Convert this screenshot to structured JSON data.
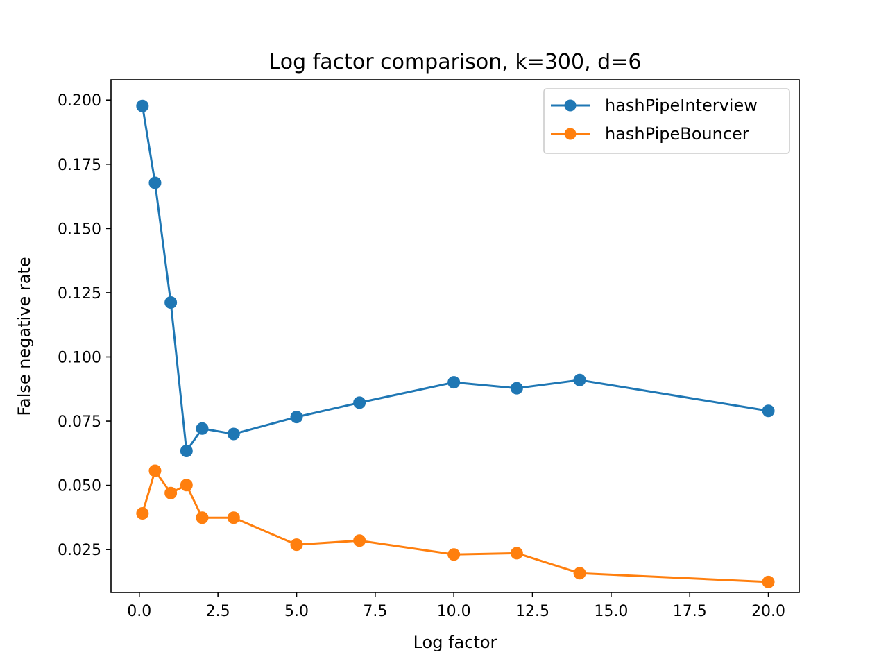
{
  "chart_data": {
    "type": "line",
    "title": "Log factor comparison, k=300, d=6",
    "xlabel": "Log factor",
    "ylabel": "False negative rate",
    "xlim": [
      -0.9,
      20.98
    ],
    "ylim": [
      0.0083,
      0.2079
    ],
    "x_ticks": [
      0.0,
      2.5,
      5.0,
      7.5,
      10.0,
      12.5,
      15.0,
      17.5,
      20.0
    ],
    "x_tick_labels": [
      "0.0",
      "2.5",
      "5.0",
      "7.5",
      "10.0",
      "12.5",
      "15.0",
      "17.5",
      "20.0"
    ],
    "y_ticks": [
      0.025,
      0.05,
      0.075,
      0.1,
      0.125,
      0.15,
      0.175,
      0.2
    ],
    "y_tick_labels": [
      "0.025",
      "0.050",
      "0.075",
      "0.100",
      "0.125",
      "0.150",
      "0.175",
      "0.200"
    ],
    "grid": false,
    "legend_position": "top-right",
    "x": [
      0.1,
      0.5,
      1.0,
      1.5,
      2.0,
      3.0,
      5.0,
      7.0,
      10.0,
      12.0,
      14.0,
      20.0
    ],
    "series": [
      {
        "name": "hashPipeInterview",
        "color": "#1f77b4",
        "marker": "circle",
        "values": [
          0.1977,
          0.1678,
          0.1212,
          0.0634,
          0.0721,
          0.07,
          0.0766,
          0.0822,
          0.0901,
          0.0878,
          0.091,
          0.079
        ]
      },
      {
        "name": "hashPipeBouncer",
        "color": "#ff7f0e",
        "marker": "circle",
        "values": [
          0.0391,
          0.0557,
          0.047,
          0.0501,
          0.0374,
          0.0374,
          0.0269,
          0.0285,
          0.0231,
          0.0236,
          0.0158,
          0.0124
        ]
      }
    ]
  }
}
